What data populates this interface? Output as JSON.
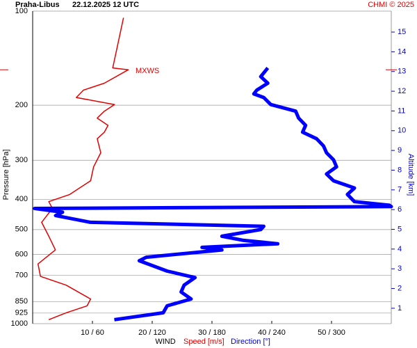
{
  "chart_data": {
    "type": "line",
    "title": "Praha-Libus",
    "subtitle": "22.12.2025 12 UTC",
    "credit": "CHMI © 2025",
    "y_label": "Pressure [hPa]",
    "y2_label": "Altitude [km]",
    "x_label": "WIND",
    "log_y": true,
    "grid": true,
    "ylim": [
      1000,
      100
    ],
    "yticks": [
      100,
      200,
      300,
      400,
      500,
      600,
      700,
      850,
      925,
      1000
    ],
    "xlim": [
      0,
      60
    ],
    "x2lim": [
      0,
      360
    ],
    "xticks": [
      {
        "value": 10,
        "label": "10 / 60"
      },
      {
        "value": 20,
        "label": "20 / 120"
      },
      {
        "value": 30,
        "label": "30 / 180"
      },
      {
        "value": 40,
        "label": "40 / 240"
      },
      {
        "value": 50,
        "label": "50 / 300"
      }
    ],
    "y2lim": [
      0.22,
      16.06
    ],
    "y2ticks": [
      1,
      2,
      3,
      4,
      5,
      6,
      7,
      8,
      9,
      10,
      11,
      12,
      13,
      14,
      15
    ],
    "annotation": {
      "label": "MXWS",
      "pressure": 154
    },
    "series": [
      {
        "name": "Speed [m/s]",
        "color": "#e00000",
        "pressure": [
          105,
          152,
          154,
          170,
          179,
          189,
          199,
          209,
          220,
          232,
          244,
          256,
          284,
          315,
          349,
          386,
          407,
          428,
          474,
          525,
          581,
          644,
          706,
          753,
          834,
          877,
          923,
          971
        ],
        "values": [
          15.2,
          13.4,
          16.0,
          12.0,
          8.5,
          7.3,
          13.7,
          12.0,
          10.8,
          12.6,
          12.0,
          10.8,
          11.4,
          10.2,
          9.7,
          6.2,
          2.7,
          3.3,
          1.5,
          2.7,
          3.8,
          0.9,
          1.3,
          5.6,
          9.7,
          9.1,
          5.6,
          2.7
        ]
      },
      {
        "name": "Direction [°]",
        "color": "#0000ff",
        "axis": "x2",
        "pressure": [
          152,
          162,
          170,
          179,
          184,
          189,
          199,
          209,
          220,
          232,
          244,
          256,
          270,
          284,
          299,
          315,
          332,
          349,
          368,
          386,
          407,
          418,
          422,
          428,
          440,
          451,
          474,
          488,
          500,
          525,
          541,
          555,
          570,
          581,
          613,
          629,
          679,
          712,
          753,
          792,
          834,
          877,
          923,
          971
        ],
        "values": [
          236,
          229,
          236,
          225,
          222,
          232,
          239,
          264,
          267,
          274,
          271,
          285,
          292,
          295,
          302,
          305,
          295,
          302,
          323,
          316,
          323,
          358,
          360,
          2,
          30,
          23,
          58,
          232,
          229,
          190,
          211,
          246,
          170,
          190,
          114,
          107,
          135,
          163,
          152,
          149,
          159,
          135,
          131,
          82
        ]
      }
    ]
  }
}
